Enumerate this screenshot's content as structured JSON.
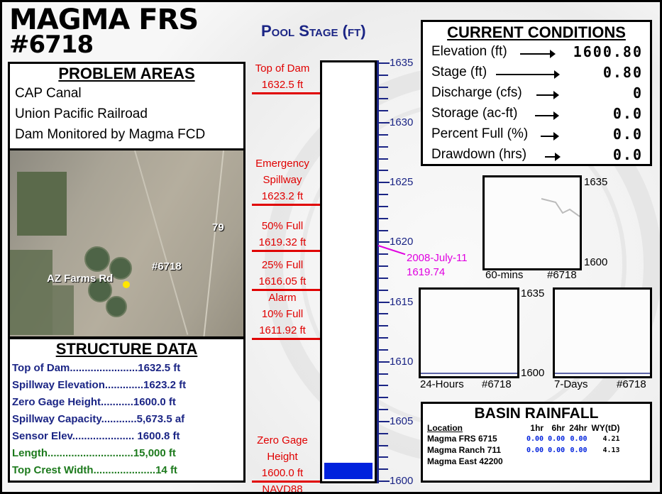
{
  "title": {
    "line1": "MAGMA FRS",
    "line2": "#6718"
  },
  "problem_areas": {
    "heading": "PROBLEM AREAS",
    "items": [
      "CAP Canal",
      "Union Pacific Railroad",
      "Dam Monitored by Magma FCD"
    ]
  },
  "map": {
    "label_route": "79",
    "label_site": "#6718",
    "label_road": "AZ Farms Rd"
  },
  "structure": {
    "heading": "STRUCTURE DATA",
    "rows": [
      {
        "text": "Top of Dam.......................1632.5 ft",
        "color": "blue"
      },
      {
        "text": "Spillway Elevation.............1623.2 ft",
        "color": "blue"
      },
      {
        "text": "Zero Gage Height...........1600.0 ft",
        "color": "blue"
      },
      {
        "text": "Spillway Capacity............5,673.5 af",
        "color": "blue"
      },
      {
        "text": "Sensor Elev..................... 1600.8 ft",
        "color": "blue"
      },
      {
        "text": "Length.............................15,000 ft",
        "color": "green"
      },
      {
        "text": "Top Crest Width.....................14 ft",
        "color": "green"
      }
    ]
  },
  "pool_stage": {
    "title": "Pool Stage (ft)",
    "scale_min": 1600,
    "scale_max": 1635,
    "major_ticks": [
      1635,
      1630,
      1625,
      1620,
      1615,
      1610,
      1605,
      1600
    ],
    "current_elevation": 1600.8,
    "current_marker": {
      "date": "2008-July-11",
      "value": "1619.74",
      "elevation": 1619.74
    },
    "markers": [
      {
        "lines": [
          "Top of Dam",
          "1632.5 ft"
        ],
        "elevation": 1632.5
      },
      {
        "lines": [
          "Emergency",
          "Spillway",
          "1623.2 ft"
        ],
        "elevation": 1623.2
      },
      {
        "lines": [
          "50% Full",
          "1619.32 ft"
        ],
        "elevation": 1619.32
      },
      {
        "lines": [
          "25% Full",
          "1616.05 ft"
        ],
        "elevation": 1616.05
      },
      {
        "lines": [
          "Alarm",
          "10% Full",
          "1611.92 ft"
        ],
        "elevation": 1611.92
      },
      {
        "lines": [
          "Zero Gage",
          "Height",
          "1600.0 ft",
          "NAVD88"
        ],
        "elevation": 1600.0
      }
    ],
    "fill_color": "#0022dd",
    "marker_color": "#e00000",
    "current_color": "#e000e0"
  },
  "current_conditions": {
    "heading": "CURRENT CONDITIONS",
    "rows": [
      {
        "label": "Elevation (ft)",
        "value": "1600.80"
      },
      {
        "label": "Stage (ft)",
        "value": "0.80"
      },
      {
        "label": "Discharge (cfs)",
        "value": "0"
      },
      {
        "label": "Storage (ac-ft)",
        "value": "0.0"
      },
      {
        "label": "Percent Full (%)",
        "value": "0.0"
      },
      {
        "label": "Drawdown (hrs)",
        "value": "0.0"
      }
    ]
  },
  "mini_charts": [
    {
      "period": "60-mins",
      "site": "#6718",
      "ymax": "1635",
      "ymin": "1600"
    },
    {
      "period": "24-Hours",
      "site": "#6718",
      "ymax": "1635",
      "ymin": "1600"
    },
    {
      "period": "7-Days",
      "site": "#6718",
      "ymax": "",
      "ymin": ""
    }
  ],
  "basin_rainfall": {
    "heading": "BASIN RAINFALL",
    "columns": [
      "Location",
      "1hr",
      "6hr",
      "24hr",
      "WY(tD)"
    ],
    "rows": [
      {
        "location": "Magma FRS 6715",
        "h1": "0.00",
        "h6": "0.00",
        "h24": "0.00",
        "wy": "4.21"
      },
      {
        "location": "Magma Ranch 711",
        "h1": "0.00",
        "h6": "0.00",
        "h24": "0.00",
        "wy": "4.13"
      },
      {
        "location": "Magma East 42200",
        "h1": "",
        "h6": "",
        "h24": "",
        "wy": ""
      }
    ]
  }
}
